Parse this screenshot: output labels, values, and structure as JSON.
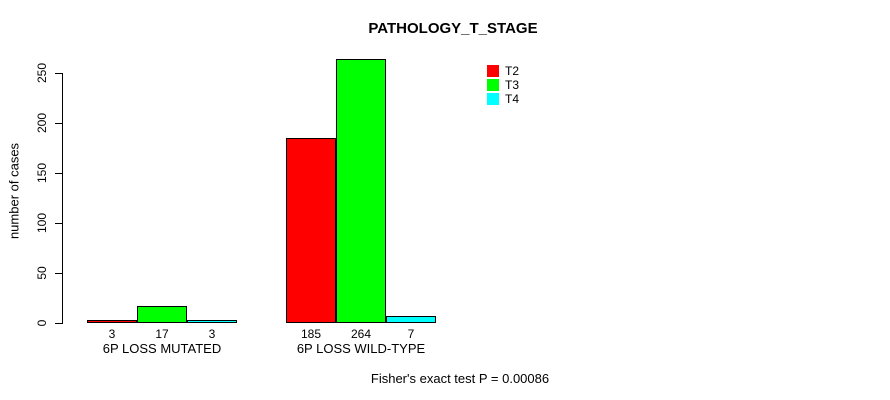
{
  "chart_data": {
    "type": "bar",
    "title": "PATHOLOGY_T_STAGE",
    "xlabel": "",
    "ylabel": "number of cases",
    "categories": [
      "6P LOSS MUTATED",
      "6P LOSS WILD-TYPE"
    ],
    "series": [
      {
        "name": "T2",
        "color": "#FF0000",
        "values": [
          3,
          185
        ]
      },
      {
        "name": "T3",
        "color": "#00FF00",
        "values": [
          17,
          264
        ]
      },
      {
        "name": "T4",
        "color": "#00FFFF",
        "values": [
          3,
          7
        ]
      }
    ],
    "bar_value_labels": [
      [
        "3",
        "17",
        "3"
      ],
      [
        "185",
        "264",
        "7"
      ]
    ],
    "yticks": [
      0,
      50,
      100,
      150,
      200,
      250
    ],
    "ylim": [
      0,
      264
    ],
    "grid": false,
    "legend_position": "top-right",
    "legend_entries": [
      "T2",
      "T3",
      "T4"
    ],
    "annotation": "Fisher's exact test P = 0.00086"
  }
}
